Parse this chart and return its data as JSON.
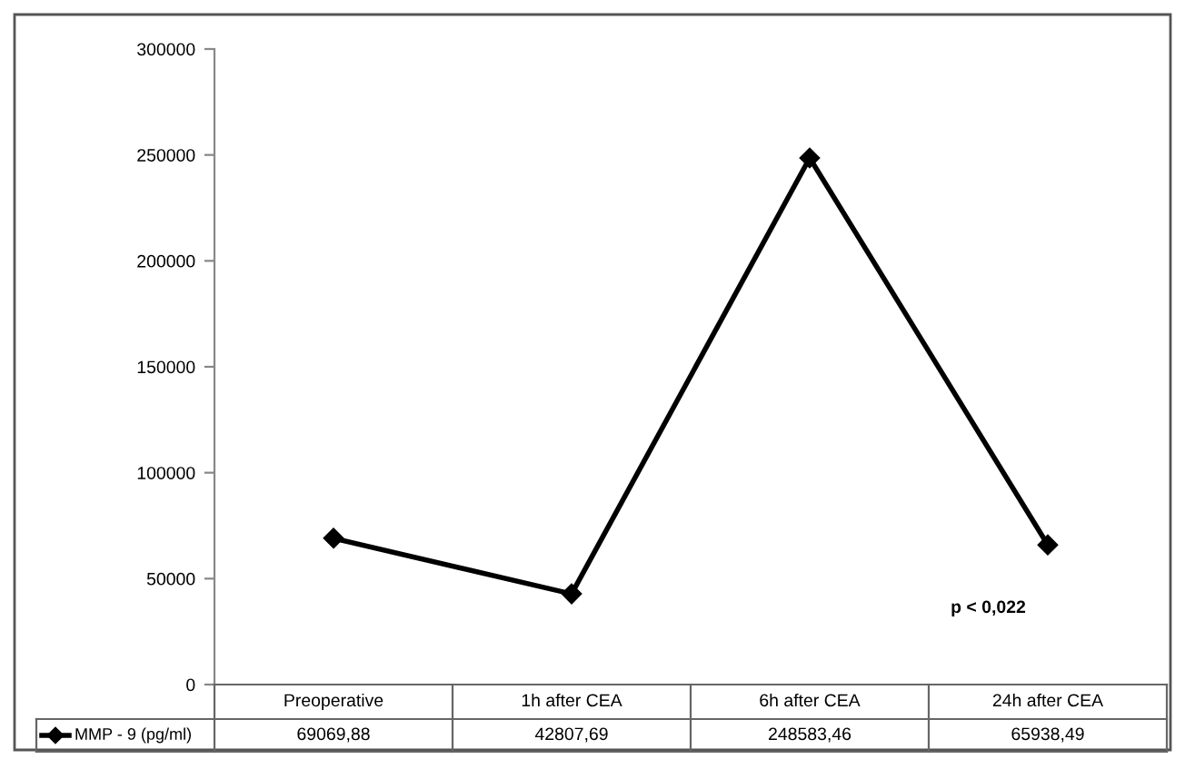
{
  "chart_data": {
    "type": "line",
    "categories": [
      "Preoperative",
      "1h after CEA",
      "6h after CEA",
      "24h after CEA"
    ],
    "series": [
      {
        "name": "MMP - 9 (pg/ml)",
        "color": "#000000",
        "values": [
          69069.88,
          42807.69,
          248583.46,
          65938.49
        ],
        "value_labels": [
          "69069,88",
          "42807,69",
          "248583,46",
          "65938,49"
        ]
      }
    ],
    "ylim": [
      0,
      300000
    ],
    "yticks": [
      0,
      50000,
      100000,
      150000,
      200000,
      250000,
      300000
    ],
    "grid": false,
    "legend": "bottom",
    "marker": "diamond",
    "line_style": "solid",
    "annotations": [
      "p < 0,022"
    ]
  }
}
